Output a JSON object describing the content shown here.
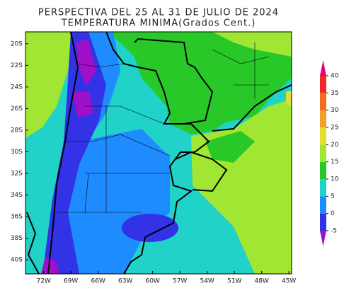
{
  "map": {
    "title": "PERSPECTIVA DEL 25 AL 31 DE JULIO DE 2024",
    "subtitle": "TEMPERATURA MINIMA(Grados Cent.)",
    "lat_range": [
      -41.3,
      -18.9
    ],
    "lon_range": [
      -74,
      -44.7
    ],
    "lat_ticks": [
      {
        "value": -20,
        "label": "20S"
      },
      {
        "value": -22,
        "label": "22S"
      },
      {
        "value": -24,
        "label": "24S"
      },
      {
        "value": -26,
        "label": "26S"
      },
      {
        "value": -28,
        "label": "28S"
      },
      {
        "value": -30,
        "label": "30S"
      },
      {
        "value": -32,
        "label": "32S"
      },
      {
        "value": -34,
        "label": "34S"
      },
      {
        "value": -36,
        "label": "36S"
      },
      {
        "value": -38,
        "label": "38S"
      },
      {
        "value": -40,
        "label": "40S"
      }
    ],
    "lon_ticks": [
      {
        "value": -72,
        "label": "72W"
      },
      {
        "value": -69,
        "label": "69W"
      },
      {
        "value": -66,
        "label": "66W"
      },
      {
        "value": -63,
        "label": "63W"
      },
      {
        "value": -60,
        "label": "60W"
      },
      {
        "value": -57,
        "label": "57W"
      },
      {
        "value": -54,
        "label": "54W"
      },
      {
        "value": -51,
        "label": "51W"
      },
      {
        "value": -48,
        "label": "48W"
      },
      {
        "value": -45,
        "label": "45W"
      }
    ],
    "colorbar": {
      "ticks": [
        -5,
        0,
        5,
        10,
        15,
        20,
        25,
        30,
        35,
        40
      ],
      "colors": [
        "#a010c8",
        "#3232e6",
        "#1e8cff",
        "#20d2c8",
        "#28c828",
        "#a0e632",
        "#e6dc32",
        "#f0a028",
        "#f06e1e",
        "#f02828",
        "#e6007e"
      ]
    }
  }
}
